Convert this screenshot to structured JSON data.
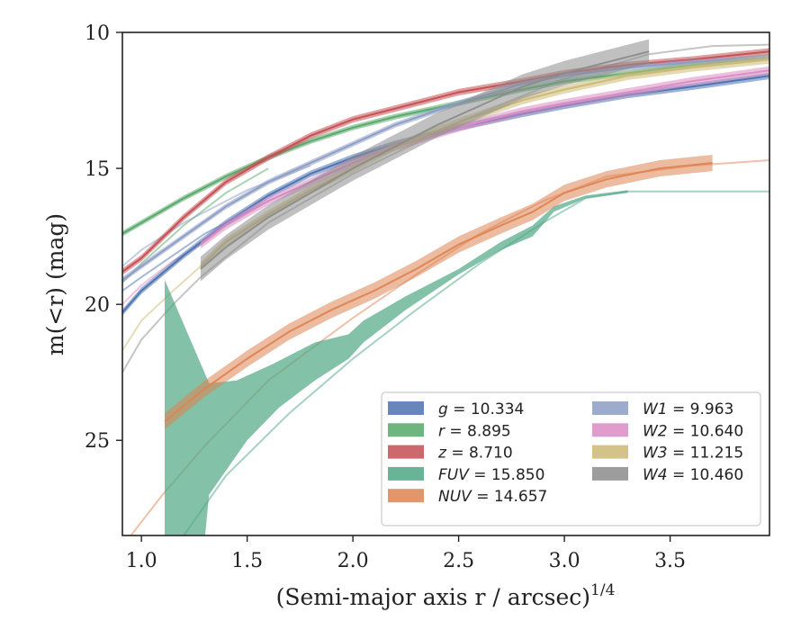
{
  "chart_data": {
    "type": "line",
    "xlabel": "(Semi-major axis r / arcsec)",
    "xlabel_exponent": "1/4",
    "ylabel": "m(<r) (mag)",
    "xlim": [
      0.91,
      3.97
    ],
    "ylim": [
      28.5,
      10
    ],
    "y_inverted": true,
    "grid": false,
    "legend_position": "lower-right",
    "x_ticks": [
      {
        "value": 1.0,
        "label": "1.0"
      },
      {
        "value": 1.5,
        "label": "1.5"
      },
      {
        "value": 2.0,
        "label": "2.0"
      },
      {
        "value": 2.5,
        "label": "2.5"
      },
      {
        "value": 3.0,
        "label": "3.0"
      },
      {
        "value": 3.5,
        "label": "3.5"
      }
    ],
    "y_ticks": [
      {
        "value": 10,
        "label": "10"
      },
      {
        "value": 15,
        "label": "15"
      },
      {
        "value": 20,
        "label": "20"
      },
      {
        "value": 25,
        "label": "25"
      }
    ],
    "series": [
      {
        "name": "g = 10.334",
        "label_var": "g",
        "label_val": "10.334",
        "color": "#4c72b0",
        "x": [
          0.91,
          1.0,
          1.2,
          1.4,
          1.6,
          1.8,
          2.0,
          2.2,
          2.5,
          2.8,
          3.0,
          3.3,
          3.6,
          3.97
        ],
        "y": [
          20.3,
          19.5,
          18.2,
          17.0,
          16.0,
          15.2,
          14.6,
          14.1,
          13.5,
          13.0,
          12.7,
          12.3,
          12.0,
          11.6
        ],
        "band": 0.12,
        "faded": {
          "x": [
            0.91,
            1.0,
            1.3,
            1.6,
            2.0
          ],
          "y": [
            19.5,
            19.0,
            17.4,
            16.2,
            14.8
          ]
        }
      },
      {
        "name": "r = 8.895",
        "label_var": "r",
        "label_val": "8.895",
        "color": "#55a868",
        "x": [
          0.91,
          1.0,
          1.2,
          1.4,
          1.6,
          1.8,
          2.0,
          2.2,
          2.5,
          2.8,
          3.0,
          3.3,
          3.6,
          3.97
        ],
        "y": [
          17.4,
          17.0,
          16.1,
          15.3,
          14.6,
          14.0,
          13.5,
          13.1,
          12.6,
          12.1,
          11.8,
          11.5,
          11.2,
          10.9
        ],
        "band": 0.1,
        "faded": {
          "x": [
            0.91,
            1.0,
            1.2,
            1.4,
            1.6
          ],
          "y": [
            19.2,
            18.5,
            17.1,
            15.9,
            15.0
          ]
        }
      },
      {
        "name": "z = 8.710",
        "label_var": "z",
        "label_val": "8.710",
        "color": "#c44e52",
        "x": [
          0.91,
          1.0,
          1.2,
          1.4,
          1.6,
          1.8,
          2.0,
          2.2,
          2.5,
          2.8,
          3.0,
          3.3,
          3.6,
          3.97
        ],
        "y": [
          18.8,
          18.3,
          16.8,
          15.5,
          14.6,
          13.8,
          13.2,
          12.8,
          12.2,
          11.8,
          11.5,
          11.2,
          11.0,
          10.7
        ],
        "band": 0.12,
        "faded": null
      },
      {
        "name": "FUV = 15.850",
        "label_var": "FUV",
        "label_val": "15.850",
        "color": "#4fa685",
        "band_poly": {
          "upper_x": [
            1.11,
            1.32,
            1.45,
            1.62,
            1.82,
            1.98,
            2.05,
            2.25,
            2.5,
            2.7,
            2.85,
            2.95,
            3.1,
            3.3
          ],
          "upper_y": [
            19.1,
            22.9,
            22.8,
            22.2,
            21.4,
            21.1,
            20.6,
            19.7,
            18.7,
            17.7,
            17.1,
            16.4,
            16.0,
            15.8
          ],
          "lower_x": [
            3.3,
            3.1,
            2.95,
            2.85,
            2.7,
            2.5,
            2.25,
            2.05,
            1.98,
            1.82,
            1.65,
            1.5,
            1.32,
            1.3,
            1.25,
            1.11
          ],
          "lower_y": [
            15.9,
            16.1,
            16.6,
            17.5,
            18.0,
            18.9,
            20.2,
            21.4,
            22.0,
            22.8,
            23.8,
            25.0,
            27.0,
            28.6,
            28.6,
            28.6
          ]
        },
        "faded": {
          "x": [
            1.2,
            1.4,
            1.7,
            2.0,
            2.3,
            2.6,
            2.9,
            3.1,
            3.3,
            3.6,
            3.97
          ],
          "y": [
            28.5,
            26.3,
            24.0,
            22.0,
            20.2,
            18.5,
            17.0,
            16.1,
            15.85,
            15.85,
            15.85
          ]
        }
      },
      {
        "name": "NUV = 14.657",
        "label_var": "NUV",
        "label_val": "14.657",
        "color": "#dd8452",
        "x": [
          1.11,
          1.3,
          1.5,
          1.7,
          1.9,
          2.1,
          2.3,
          2.5,
          2.7,
          2.85,
          3.0,
          3.2,
          3.45,
          3.7
        ],
        "y": [
          24.3,
          23.1,
          22.0,
          21.0,
          20.2,
          19.5,
          18.7,
          17.8,
          17.1,
          16.6,
          15.9,
          15.4,
          15.0,
          14.8
        ],
        "band": 0.3,
        "faded": {
          "x": [
            0.95,
            1.1,
            1.3,
            1.6,
            2.0,
            2.3,
            2.6,
            2.9,
            3.2,
            3.6,
            3.97
          ],
          "y": [
            28.5,
            27.0,
            25.2,
            22.8,
            20.5,
            18.9,
            17.4,
            16.2,
            15.3,
            14.9,
            14.7
          ]
        }
      },
      {
        "name": "W1 = 9.963",
        "label_var": "W1",
        "label_val": "9.963",
        "color": "#8c9dc4",
        "x": [
          0.91,
          1.0,
          1.2,
          1.4,
          1.6,
          1.8,
          2.0,
          2.2,
          2.5,
          2.8,
          3.0,
          3.3,
          3.6,
          3.97
        ],
        "y": [
          19.1,
          18.6,
          17.5,
          16.4,
          15.5,
          14.8,
          14.1,
          13.4,
          12.6,
          11.9,
          11.6,
          11.3,
          11.1,
          10.9
        ],
        "band": 0.1,
        "faded": {
          "x": [
            0.91,
            1.0,
            1.2,
            1.5,
            1.8
          ],
          "y": [
            18.6,
            18.0,
            17.0,
            15.8,
            14.9
          ]
        }
      },
      {
        "name": "W2 = 10.640",
        "label_var": "W2",
        "label_val": "10.640",
        "color": "#da8bc3",
        "x": [
          1.28,
          1.4,
          1.6,
          1.8,
          2.0,
          2.2,
          2.5,
          2.8,
          3.0,
          3.3,
          3.6,
          3.97
        ],
        "y": [
          17.8,
          17.1,
          16.2,
          15.5,
          14.8,
          14.2,
          13.5,
          12.9,
          12.6,
          12.2,
          11.8,
          11.4
        ],
        "band": 0.15,
        "faded": {
          "x": [
            0.91,
            1.0,
            1.15,
            1.28
          ],
          "y": [
            20.0,
            19.3,
            18.4,
            17.8
          ]
        }
      },
      {
        "name": "W3 = 11.215",
        "label_var": "W3",
        "label_val": "11.215",
        "color": "#ccb974",
        "x": [
          1.28,
          1.4,
          1.6,
          1.8,
          2.0,
          2.2,
          2.5,
          2.8,
          3.0,
          3.3,
          3.6,
          3.97
        ],
        "y": [
          18.6,
          17.7,
          16.7,
          15.8,
          15.0,
          14.2,
          13.3,
          12.5,
          12.1,
          11.6,
          11.3,
          11.0
        ],
        "band": 0.15,
        "faded": {
          "x": [
            0.91,
            1.0,
            1.15,
            1.28
          ],
          "y": [
            21.7,
            20.6,
            19.5,
            18.6
          ]
        }
      },
      {
        "name": "W4 = 10.460",
        "label_var": "W4",
        "label_val": "10.460",
        "color": "#8c8c8c",
        "x": [
          1.28,
          1.4,
          1.6,
          1.8,
          2.0,
          2.2,
          2.4,
          2.6,
          2.8,
          3.0,
          3.2,
          3.4
        ],
        "y": [
          18.7,
          17.9,
          16.8,
          15.9,
          15.0,
          14.2,
          13.4,
          12.7,
          12.0,
          11.5,
          11.1,
          10.7
        ],
        "band": 0.45,
        "faded": {
          "x": [
            0.91,
            1.0,
            1.15,
            1.28,
            1.6,
            2.0,
            2.5,
            3.0,
            3.4,
            3.7,
            3.97
          ],
          "y": [
            22.5,
            21.3,
            20.0,
            19.0,
            17.0,
            15.2,
            13.3,
            11.7,
            10.8,
            10.5,
            10.45
          ]
        }
      }
    ]
  }
}
